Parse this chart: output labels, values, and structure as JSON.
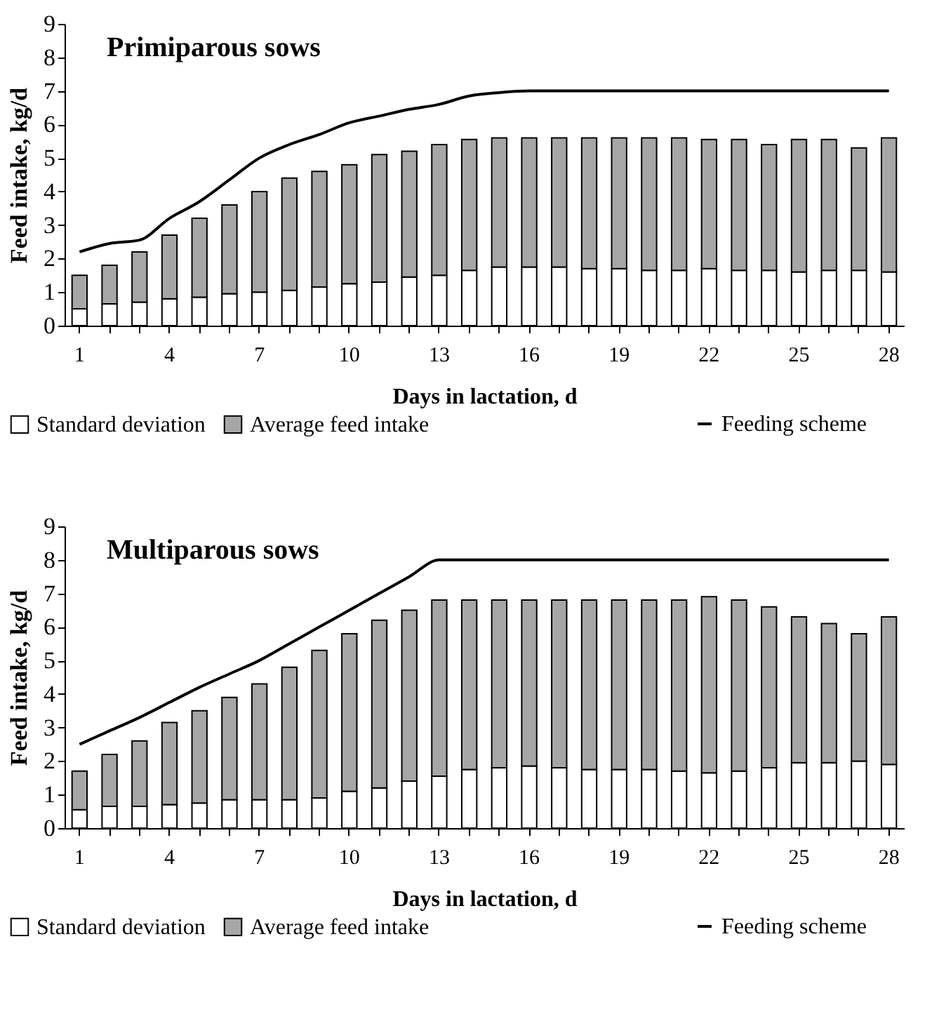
{
  "chart_data": [
    {
      "type": "bar",
      "title": "Primiparous sows",
      "xlabel": "Days in lactation, d",
      "ylabel": "Feed intake, kg/d",
      "stacked": true,
      "legend": "bottom",
      "grid": false,
      "ylim": [
        0,
        9
      ],
      "yticks": [
        0,
        1,
        2,
        3,
        4,
        5,
        6,
        7,
        8,
        9
      ],
      "categories": [
        "1",
        null,
        null,
        "4",
        null,
        null,
        "7",
        null,
        null,
        "10",
        null,
        null,
        "13",
        null,
        null,
        "16",
        null,
        null,
        "19",
        null,
        null,
        "22",
        null,
        null,
        "25",
        null,
        null,
        "28"
      ],
      "series": [
        {
          "name": "Standard deviation",
          "color": "#ffffff",
          "values": [
            0.5,
            0.65,
            0.7,
            0.8,
            0.85,
            0.95,
            1.0,
            1.05,
            1.15,
            1.25,
            1.3,
            1.45,
            1.5,
            1.65,
            1.75,
            1.75,
            1.75,
            1.7,
            1.7,
            1.65,
            1.65,
            1.7,
            1.65,
            1.65,
            1.6,
            1.65,
            1.65,
            1.6
          ]
        },
        {
          "name": "Average feed intake",
          "color": "#a6a6a6",
          "values": [
            1.0,
            1.15,
            1.5,
            1.9,
            2.35,
            2.65,
            3.0,
            3.35,
            3.45,
            3.55,
            3.8,
            3.75,
            3.9,
            3.9,
            3.85,
            3.85,
            3.85,
            3.9,
            3.9,
            3.95,
            3.95,
            3.85,
            3.9,
            3.75,
            3.95,
            3.9,
            3.65,
            4.0
          ]
        },
        {
          "name": "Feeding scheme",
          "type": "line",
          "color": "#000000",
          "values": [
            2.2,
            2.45,
            2.55,
            3.2,
            3.7,
            4.35,
            5.0,
            5.4,
            5.7,
            6.05,
            6.25,
            6.45,
            6.6,
            6.85,
            6.95,
            7.0,
            7.0,
            7.0,
            7.0,
            7.0,
            7.0,
            7.0,
            7.0,
            7.0,
            7.0,
            7.0,
            7.0,
            7.0
          ]
        }
      ]
    },
    {
      "type": "bar",
      "title": "Multiparous sows",
      "xlabel": "Days in lactation, d",
      "ylabel": "Feed intake, kg/d",
      "stacked": true,
      "legend": "bottom",
      "grid": false,
      "ylim": [
        0,
        9
      ],
      "yticks": [
        0,
        1,
        2,
        3,
        4,
        5,
        6,
        7,
        8,
        9
      ],
      "categories": [
        "1",
        null,
        null,
        "4",
        null,
        null,
        "7",
        null,
        null,
        "10",
        null,
        null,
        "13",
        null,
        null,
        "16",
        null,
        null,
        "19",
        null,
        null,
        "22",
        null,
        null,
        "25",
        null,
        null,
        "28"
      ],
      "series": [
        {
          "name": "Standard deviation",
          "color": "#ffffff",
          "values": [
            0.55,
            0.65,
            0.65,
            0.7,
            0.75,
            0.85,
            0.85,
            0.85,
            0.9,
            1.1,
            1.2,
            1.4,
            1.55,
            1.75,
            1.8,
            1.85,
            1.8,
            1.75,
            1.75,
            1.75,
            1.7,
            1.65,
            1.7,
            1.8,
            1.95,
            1.95,
            2.0,
            1.9
          ]
        },
        {
          "name": "Average feed intake",
          "color": "#a6a6a6",
          "values": [
            1.15,
            1.55,
            1.95,
            2.45,
            2.75,
            3.05,
            3.45,
            3.95,
            4.4,
            4.7,
            5.0,
            5.1,
            5.25,
            5.05,
            5.0,
            4.95,
            5.0,
            5.05,
            5.05,
            5.05,
            5.1,
            5.25,
            5.1,
            4.8,
            4.35,
            4.15,
            3.8,
            4.4
          ]
        },
        {
          "name": "Feeding scheme",
          "type": "line",
          "color": "#000000",
          "values": [
            2.5,
            2.9,
            3.3,
            3.75,
            4.2,
            4.6,
            5.0,
            5.5,
            6.0,
            6.5,
            7.0,
            7.5,
            8.0,
            8.0,
            8.0,
            8.0,
            8.0,
            8.0,
            8.0,
            8.0,
            8.0,
            8.0,
            8.0,
            8.0,
            8.0,
            8.0,
            8.0,
            8.0
          ]
        }
      ]
    }
  ]
}
